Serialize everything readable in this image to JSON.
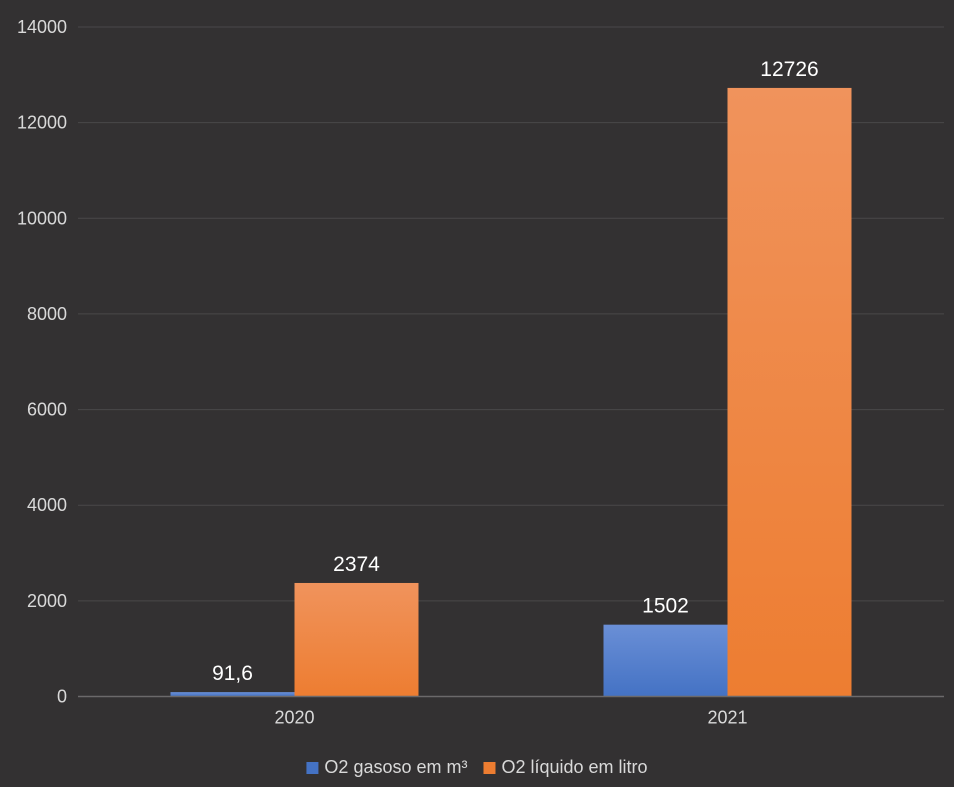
{
  "chart_data": {
    "type": "bar",
    "categories": [
      "2020",
      "2021"
    ],
    "series": [
      {
        "name": "O2 gasoso em m³",
        "values": [
          91.6,
          1502
        ],
        "labels": [
          "91,6",
          "1502"
        ],
        "color": "#4472C4"
      },
      {
        "name": "O2 líquido em litro",
        "values": [
          2374,
          12726
        ],
        "labels": [
          "2374",
          "12726"
        ],
        "color": "#ED7D31"
      }
    ],
    "ylim": [
      0,
      14000
    ],
    "yticks": [
      0,
      2000,
      4000,
      6000,
      8000,
      10000,
      12000,
      14000
    ],
    "grid": true,
    "legend": "bottom",
    "background": "#333132"
  }
}
